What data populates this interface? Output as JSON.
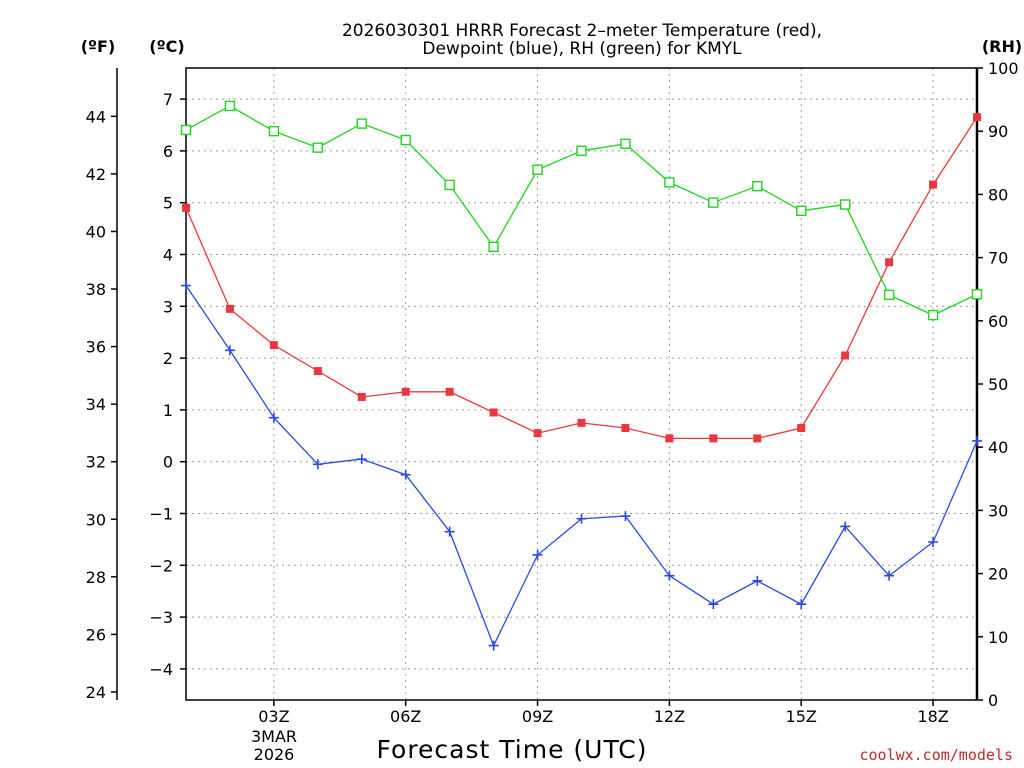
{
  "chart_data": {
    "type": "line",
    "title": "2026030301 HRRR Forecast 2-meter Temperature (red), Dewpoint (blue), RH (green) for KMYL",
    "title_lines": [
      "2026030301 HRRR Forecast 2–meter Temperature (red),",
      "Dewpoint (blue), RH (green) for KMYL"
    ],
    "xlabel": "Forecast Time (UTC)",
    "date_label": [
      "3MAR",
      "2026"
    ],
    "credit": "coolwx.com/models",
    "x_hours": [
      1,
      2,
      3,
      4,
      5,
      6,
      7,
      8,
      9,
      10,
      11,
      12,
      13,
      14,
      15,
      16,
      17,
      18,
      19
    ],
    "xlim": [
      1,
      19
    ],
    "x_ticks": [
      {
        "hour": 3,
        "label": "03Z"
      },
      {
        "hour": 6,
        "label": "06Z"
      },
      {
        "hour": 9,
        "label": "09Z"
      },
      {
        "hour": 12,
        "label": "12Z"
      },
      {
        "hour": 15,
        "label": "15Z"
      },
      {
        "hour": 18,
        "label": "18Z"
      }
    ],
    "units": {
      "fahrenheit": "(ºF)",
      "celsius": "(ºC)",
      "rh": "(RH)"
    },
    "celsius_axis": {
      "ylim": [
        -4.6,
        7.6
      ],
      "ticks": [
        -4,
        -3,
        -2,
        -1,
        0,
        1,
        2,
        3,
        4,
        5,
        6,
        7
      ]
    },
    "fahrenheit_ticks": [
      24,
      26,
      28,
      30,
      32,
      34,
      36,
      38,
      40,
      42,
      44
    ],
    "rh_axis": {
      "ylim": [
        0,
        100
      ],
      "ticks": [
        0,
        10,
        20,
        30,
        40,
        50,
        60,
        70,
        80,
        90,
        100
      ]
    },
    "series": [
      {
        "name": "Temperature",
        "axis": "celsius",
        "color": "#e8383d",
        "marker": "filled-square",
        "values": [
          4.9,
          2.95,
          2.25,
          1.75,
          1.25,
          1.35,
          1.35,
          0.95,
          0.55,
          0.75,
          0.65,
          0.45,
          0.45,
          0.45,
          0.65,
          2.05,
          3.85,
          5.35,
          6.65
        ]
      },
      {
        "name": "Dewpoint",
        "axis": "celsius",
        "color": "#2a4be0",
        "marker": "plus",
        "values": [
          3.4,
          2.15,
          0.85,
          -0.05,
          0.05,
          -0.25,
          -1.35,
          -3.55,
          -1.8,
          -1.1,
          -1.05,
          -2.2,
          -2.75,
          -2.3,
          -2.75,
          -1.25,
          -2.2,
          -1.55,
          0.4
        ]
      },
      {
        "name": "RH",
        "axis": "rh",
        "color": "#1fd41f",
        "marker": "open-square",
        "values": [
          90.2,
          94.0,
          90.0,
          87.4,
          91.2,
          88.6,
          81.5,
          71.7,
          83.9,
          86.9,
          88.0,
          81.9,
          78.7,
          81.3,
          77.4,
          78.4,
          64.1,
          60.9,
          64.2
        ]
      }
    ]
  }
}
